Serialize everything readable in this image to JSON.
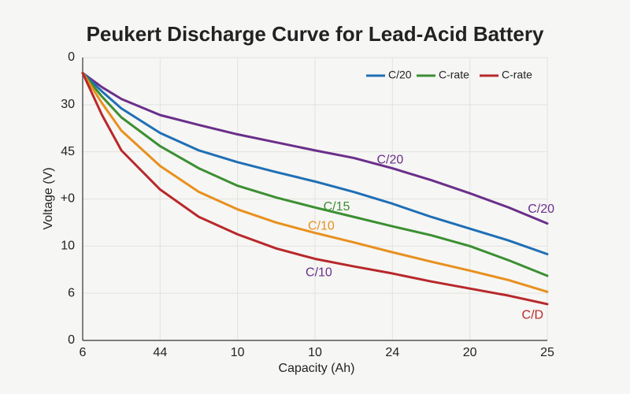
{
  "chart_data": {
    "type": "line",
    "title": "Peukert Discharge Curve for Lead-Acid Battery",
    "x_label": "Capacity (Ah)",
    "y_label": "Voltage (V)",
    "x": [
      0,
      0.25,
      0.5,
      1,
      1.5,
      2,
      2.5,
      3,
      3.5,
      4,
      4.5,
      5,
      5.5,
      6
    ],
    "xlim": [
      0,
      6
    ],
    "xticks": [
      {
        "value": 0,
        "label": "6"
      },
      {
        "value": 1,
        "label": "44"
      },
      {
        "value": 2,
        "label": "10"
      },
      {
        "value": 3,
        "label": "10"
      },
      {
        "value": 4,
        "label": "24"
      },
      {
        "value": 5,
        "label": "20"
      },
      {
        "value": 6,
        "label": "25"
      }
    ],
    "ylim": [
      0,
      6
    ],
    "yticks": [
      {
        "value": 0,
        "label": "0"
      },
      {
        "value": 1,
        "label": "6"
      },
      {
        "value": 2,
        "label": "10"
      },
      {
        "value": 3,
        "label": "+0"
      },
      {
        "value": 4,
        "label": "45"
      },
      {
        "value": 5,
        "label": "30"
      },
      {
        "value": 6,
        "label": "0"
      }
    ],
    "grid": true,
    "legend": "upper right",
    "series": [
      {
        "color": "#6a2f8a",
        "values": [
          5.67,
          5.37,
          5.12,
          4.78,
          4.57,
          4.37,
          4.2,
          4.03,
          3.87,
          3.65,
          3.4,
          3.12,
          2.82,
          2.48
        ]
      },
      {
        "name": "C/20",
        "color": "#1f6fb5",
        "values": [
          5.67,
          5.28,
          4.92,
          4.4,
          4.03,
          3.78,
          3.57,
          3.37,
          3.15,
          2.9,
          2.62,
          2.37,
          2.12,
          1.83
        ]
      },
      {
        "name": "C-rate",
        "color": "#3c8f32",
        "values": [
          5.67,
          5.17,
          4.73,
          4.12,
          3.65,
          3.28,
          3.03,
          2.82,
          2.62,
          2.42,
          2.23,
          2.0,
          1.7,
          1.37
        ]
      },
      {
        "color": "#e8901e",
        "values": [
          5.67,
          5.03,
          4.45,
          3.7,
          3.15,
          2.78,
          2.5,
          2.28,
          2.08,
          1.87,
          1.67,
          1.48,
          1.28,
          1.03
        ]
      },
      {
        "name": "C-rate",
        "color": "#b8282a",
        "values": [
          5.67,
          4.78,
          4.03,
          3.2,
          2.62,
          2.25,
          1.95,
          1.73,
          1.57,
          1.42,
          1.25,
          1.1,
          0.95,
          0.77
        ]
      }
    ],
    "annotations": [
      {
        "text": "C/20",
        "x": 3.97,
        "y": 3.82,
        "color": "#6a2f8a"
      },
      {
        "text": "C/20",
        "x": 5.92,
        "y": 2.78,
        "color": "#6a2f8a"
      },
      {
        "text": "C/15",
        "x": 3.28,
        "y": 2.83,
        "color": "#3c8f32"
      },
      {
        "text": "C/10",
        "x": 3.08,
        "y": 2.42,
        "color": "#e8901e"
      },
      {
        "text": "C/10",
        "x": 3.05,
        "y": 1.43,
        "color": "#6a2f8a"
      },
      {
        "text": "C/D",
        "x": 5.81,
        "y": 0.53,
        "color": "#b8282a"
      }
    ]
  }
}
